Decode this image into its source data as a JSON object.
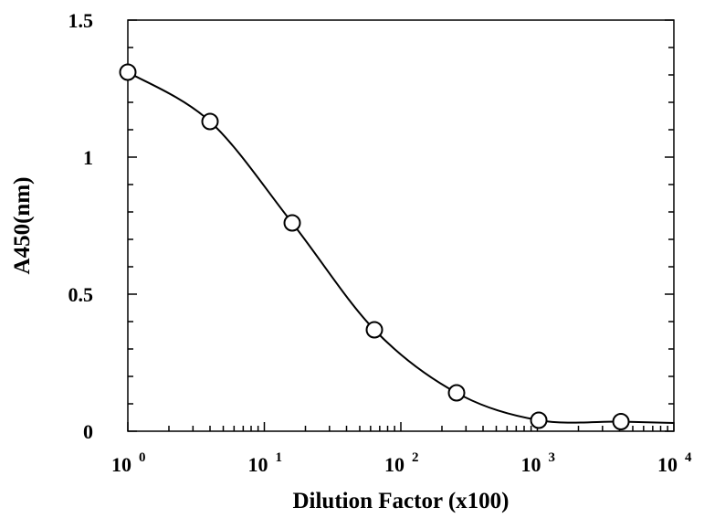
{
  "chart_data": {
    "type": "scatter",
    "title": "",
    "xlabel": "Dilution Factor (x100)",
    "ylabel": "A450(nm)",
    "x_scale": "log",
    "xlim": [
      1,
      10000
    ],
    "ylim": [
      0,
      1.5
    ],
    "x_ticks": [
      {
        "value": 1,
        "base": "10",
        "exp": "0"
      },
      {
        "value": 10,
        "base": "10",
        "exp": "1"
      },
      {
        "value": 100,
        "base": "10",
        "exp": "2"
      },
      {
        "value": 1000,
        "base": "10",
        "exp": "3"
      },
      {
        "value": 10000,
        "base": "10",
        "exp": "4"
      }
    ],
    "y_ticks": [
      {
        "value": 0,
        "label": "0"
      },
      {
        "value": 0.5,
        "label": "0.5"
      },
      {
        "value": 1,
        "label": "1"
      },
      {
        "value": 1.5,
        "label": "1.5"
      }
    ],
    "y_minor_step": 0.1,
    "grid": false,
    "series": [
      {
        "marker": "open-circle",
        "line": "smooth-fit",
        "color": "#000000",
        "points": [
          {
            "x": 1,
            "y": 1.31
          },
          {
            "x": 4,
            "y": 1.13
          },
          {
            "x": 16,
            "y": 0.76
          },
          {
            "x": 64,
            "y": 0.37
          },
          {
            "x": 256,
            "y": 0.14
          },
          {
            "x": 1024,
            "y": 0.04
          },
          {
            "x": 4096,
            "y": 0.035
          }
        ]
      }
    ]
  }
}
